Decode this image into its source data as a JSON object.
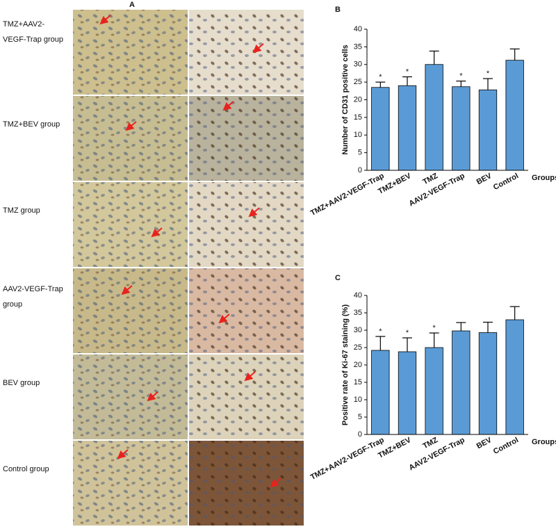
{
  "figure_a": {
    "panel": "A",
    "rows": [
      [
        "TMZ+AAV2-",
        "VEGF-Trap group"
      ],
      [
        "TMZ+BEV group"
      ],
      [
        "TMZ group"
      ],
      [
        "AAV2-VEGF-Trap",
        "group"
      ],
      [
        "BEV group"
      ],
      [
        "Control group"
      ]
    ]
  },
  "chart_data": [
    {
      "type": "bar",
      "panel": "B",
      "ylabel": "Number of CD31 positive cells",
      "xlabel": "Groups",
      "categories": [
        "TMZ+AAV2-VEGF-Trap",
        "TMZ+BEV",
        "TMZ",
        "AAV2-VEGF-Trap",
        "BEV",
        "Control"
      ],
      "values": [
        23.5,
        24,
        30,
        23.7,
        22.8,
        31.2
      ],
      "errors": [
        1.5,
        2.5,
        3.8,
        1.6,
        3.2,
        3.2
      ],
      "significance": [
        "*",
        "*",
        null,
        "*",
        "*",
        null
      ],
      "color": "#5b9bd5",
      "ylim": [
        0,
        40
      ],
      "yticks": [
        0,
        5,
        10,
        15,
        20,
        25,
        30,
        35,
        40
      ]
    },
    {
      "type": "bar",
      "panel": "C",
      "ylabel": "Positive rate of Ki-67 staining (%)",
      "xlabel": "Groups",
      "categories": [
        "TMZ+AAV2-VEGF-Trap",
        "TMZ+BEV",
        "TMZ",
        "AAV2-VEGF-Trap",
        "BEV",
        "Control"
      ],
      "values": [
        24.2,
        23.8,
        25,
        29.8,
        29.3,
        33
      ],
      "errors": [
        4,
        4,
        4.2,
        2.4,
        3,
        3.8
      ],
      "significance": [
        "*",
        "*",
        "*",
        null,
        null,
        null
      ],
      "color": "#5b9bd5",
      "ylim": [
        0,
        40
      ],
      "yticks": [
        0,
        5,
        10,
        15,
        20,
        25,
        30,
        35,
        40
      ]
    }
  ]
}
